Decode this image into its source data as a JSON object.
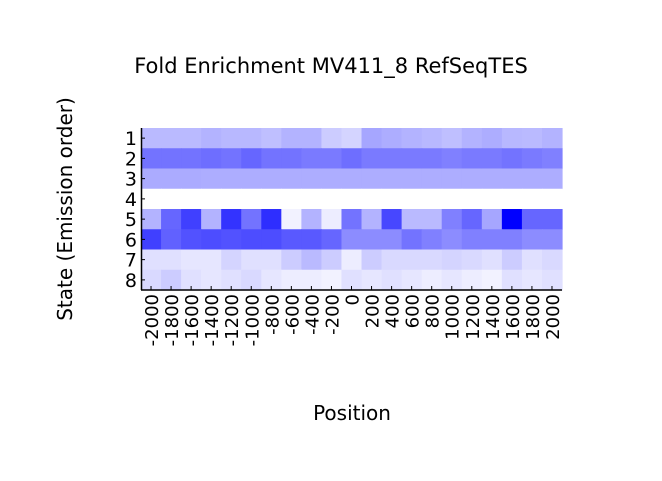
{
  "chart_data": {
    "type": "heatmap",
    "title": "Fold Enrichment MV411_8 RefSeqTES",
    "xlabel": "Position",
    "ylabel": "State (Emission order)",
    "x_categories": [
      "-2000",
      "-1800",
      "-1600",
      "-1400",
      "-1200",
      "-1000",
      "-800",
      "-600",
      "-400",
      "-200",
      "0",
      "200",
      "400",
      "600",
      "800",
      "1000",
      "1200",
      "1400",
      "1600",
      "1800",
      "2000"
    ],
    "y_categories": [
      "1",
      "2",
      "3",
      "4",
      "5",
      "6",
      "7",
      "8"
    ],
    "color_low": "#ffffff",
    "color_high": "#0000ff",
    "value_range": [
      0,
      1
    ],
    "values": [
      [
        0.27,
        0.27,
        0.27,
        0.3,
        0.28,
        0.28,
        0.25,
        0.3,
        0.3,
        0.2,
        0.17,
        0.35,
        0.32,
        0.3,
        0.28,
        0.25,
        0.3,
        0.32,
        0.28,
        0.27,
        0.3
      ],
      [
        0.55,
        0.55,
        0.55,
        0.57,
        0.55,
        0.6,
        0.55,
        0.55,
        0.52,
        0.52,
        0.57,
        0.52,
        0.52,
        0.52,
        0.52,
        0.5,
        0.52,
        0.52,
        0.55,
        0.52,
        0.5
      ],
      [
        0.33,
        0.33,
        0.33,
        0.32,
        0.32,
        0.32,
        0.32,
        0.32,
        0.32,
        0.32,
        0.32,
        0.32,
        0.32,
        0.32,
        0.32,
        0.32,
        0.32,
        0.32,
        0.32,
        0.32,
        0.32
      ],
      [
        0.0,
        0.0,
        0.0,
        0.0,
        0.0,
        0.0,
        0.0,
        0.0,
        0.0,
        0.0,
        0.0,
        0.0,
        0.0,
        0.0,
        0.0,
        0.0,
        0.0,
        0.0,
        0.0,
        0.0,
        0.0
      ],
      [
        0.3,
        0.6,
        0.75,
        0.3,
        0.8,
        0.55,
        0.82,
        0.05,
        0.3,
        0.07,
        0.55,
        0.3,
        0.72,
        0.27,
        0.27,
        0.5,
        0.6,
        0.35,
        1.0,
        0.6,
        0.6
      ],
      [
        0.75,
        0.62,
        0.68,
        0.7,
        0.68,
        0.7,
        0.7,
        0.65,
        0.65,
        0.6,
        0.45,
        0.45,
        0.45,
        0.55,
        0.5,
        0.45,
        0.5,
        0.5,
        0.5,
        0.45,
        0.45
      ],
      [
        0.12,
        0.12,
        0.1,
        0.1,
        0.17,
        0.12,
        0.12,
        0.2,
        0.27,
        0.2,
        0.07,
        0.2,
        0.15,
        0.15,
        0.15,
        0.17,
        0.15,
        0.12,
        0.2,
        0.12,
        0.15
      ],
      [
        0.15,
        0.2,
        0.12,
        0.1,
        0.12,
        0.15,
        0.1,
        0.07,
        0.07,
        0.05,
        0.12,
        0.1,
        0.12,
        0.1,
        0.07,
        0.1,
        0.07,
        0.05,
        0.12,
        0.1,
        0.12
      ]
    ]
  }
}
